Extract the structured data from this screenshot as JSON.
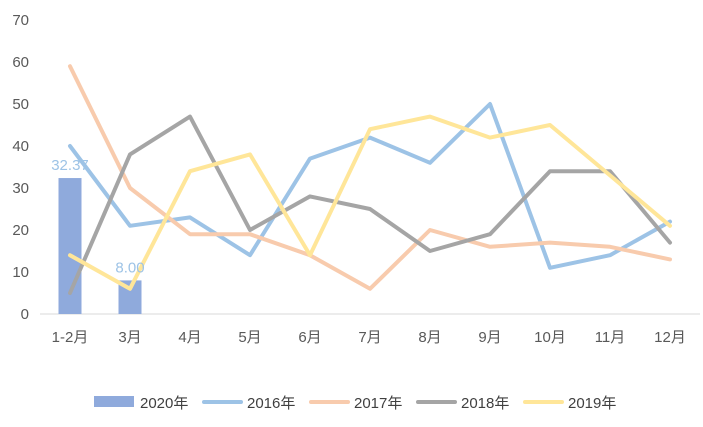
{
  "chart_data": {
    "type": "bar+line",
    "categories": [
      "1-2月",
      "3月",
      "4月",
      "5月",
      "6月",
      "7月",
      "8月",
      "9月",
      "10月",
      "11月",
      "12月"
    ],
    "ylim": [
      0,
      70
    ],
    "yticks": [
      0,
      10,
      20,
      30,
      40,
      50,
      60,
      70
    ],
    "grid": false,
    "legend_position": "bottom",
    "bar_series": {
      "name": "2020年",
      "color": "#8faadc",
      "values": [
        32.37,
        8.0
      ],
      "data_labels": [
        "32.37",
        "8.00"
      ],
      "data_label_color": "#9dc3e6"
    },
    "line_series": [
      {
        "name": "2016年",
        "color": "#9dc3e6",
        "values": [
          40,
          21,
          23,
          14,
          37,
          42,
          36,
          50,
          11,
          14,
          22
        ]
      },
      {
        "name": "2017年",
        "color": "#f8cbad",
        "values": [
          59,
          30,
          19,
          19,
          14,
          6,
          20,
          16,
          17,
          16,
          13
        ]
      },
      {
        "name": "2018年",
        "color": "#a5a5a5",
        "values": [
          5,
          38,
          47,
          20,
          28,
          25,
          15,
          19,
          34,
          34,
          17
        ]
      },
      {
        "name": "2019年",
        "color": "#ffe699",
        "values": [
          14,
          6,
          34,
          38,
          14,
          44,
          47,
          42,
          45,
          33,
          21
        ]
      }
    ]
  }
}
